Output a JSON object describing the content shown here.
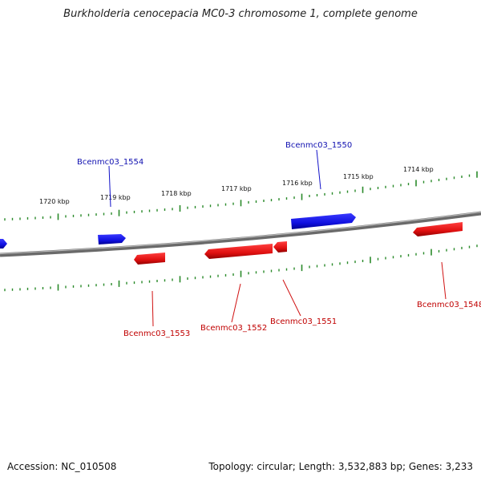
{
  "title": "Burkholderia cenocepacia MC0-3 chromosome 1, complete genome",
  "footer": {
    "accession": "Accession: NC_010508",
    "summary": "Topology: circular; Length: 3,532,883 bp; Genes: 3,233"
  },
  "colors": {
    "forward_strand": "#1010e0",
    "reverse_strand": "#e01010",
    "tick_marks": "#2a8a2a",
    "backbone": "#888888"
  },
  "kbp_ticks": [
    "1720 kbp",
    "1719 kbp",
    "1718 kbp",
    "1717 kbp",
    "1716 kbp",
    "1715 kbp",
    "1714 kbp"
  ],
  "genes_forward": [
    "Bcenmc03_1554",
    "Bcenmc03_1550"
  ],
  "genes_reverse": [
    "Bcenmc03_1553",
    "Bcenmc03_1552",
    "Bcenmc03_1551",
    "Bcenmc03_1548"
  ]
}
